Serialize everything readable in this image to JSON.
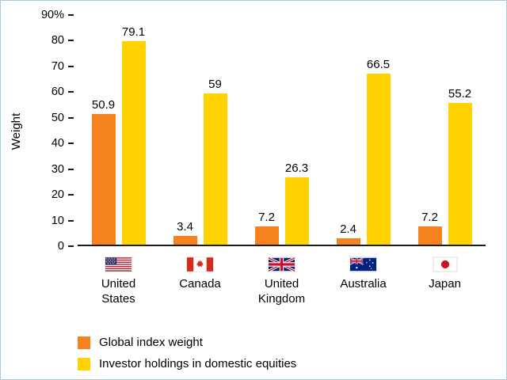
{
  "chart_data": {
    "type": "bar",
    "categories": [
      "United States",
      "Canada",
      "United Kingdom",
      "Australia",
      "Japan"
    ],
    "series": [
      {
        "name": "Global index weight",
        "color": "#F5821F",
        "values": [
          50.9,
          3.4,
          7.2,
          2.4,
          7.2
        ],
        "labels": [
          "50.9",
          "3.4",
          "7.2",
          "2.4",
          "7.2"
        ]
      },
      {
        "name": "Investor holdings in domestic equities",
        "color": "#FFD200",
        "values": [
          79.1,
          59,
          26.3,
          66.5,
          55.2
        ],
        "labels": [
          "79.1",
          "59",
          "26.3",
          "66.5",
          "55.2"
        ]
      }
    ],
    "title": "",
    "xlabel": "",
    "ylabel": "Weight",
    "ylim": [
      0,
      90
    ],
    "y_ticks": [
      "90%",
      "80",
      "70",
      "60",
      "50",
      "40",
      "30",
      "20",
      "10",
      "0"
    ],
    "grid": false,
    "legend_position": "bottom-left",
    "flags": [
      "us-flag-icon",
      "canada-flag-icon",
      "uk-flag-icon",
      "australia-flag-icon",
      "japan-flag-icon"
    ]
  }
}
